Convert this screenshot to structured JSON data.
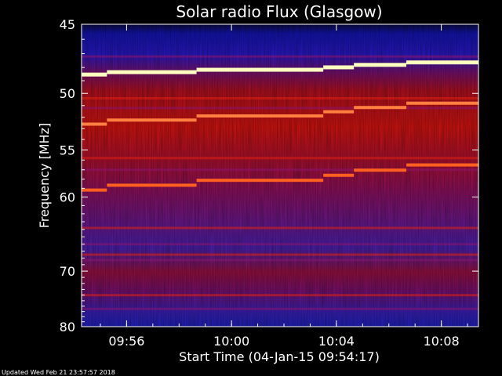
{
  "chart_data": {
    "type": "heatmap",
    "title": "Solar radio Flux (Glasgow)",
    "xlabel": "Start Time (04-Jan-15 09:54:17)",
    "ylabel": "Frequency [MHz]",
    "x_ticks": [
      "09:56",
      "10:00",
      "10:04",
      "10:08"
    ],
    "y_ticks": [
      "45",
      "50",
      "55",
      "60",
      "70",
      "80"
    ],
    "y_scale": "reciprocal",
    "ylim": [
      45,
      80
    ],
    "xlim": [
      "09:54:17",
      "10:09:25"
    ],
    "footer": "Updated Wed Feb 21 23:57:57 2018",
    "colormap": [
      "#000030",
      "#1010c0",
      "#5020b0",
      "#8010a0",
      "#b00a30",
      "#e01010",
      "#ff6020",
      "#ffff90"
    ],
    "bright_lines_mhz": [
      48.5,
      52.6,
      59.2
    ],
    "step_times": [
      "09:55:15",
      "09:58:40",
      "10:03:30",
      "10:04:40",
      "10:06:40"
    ]
  }
}
